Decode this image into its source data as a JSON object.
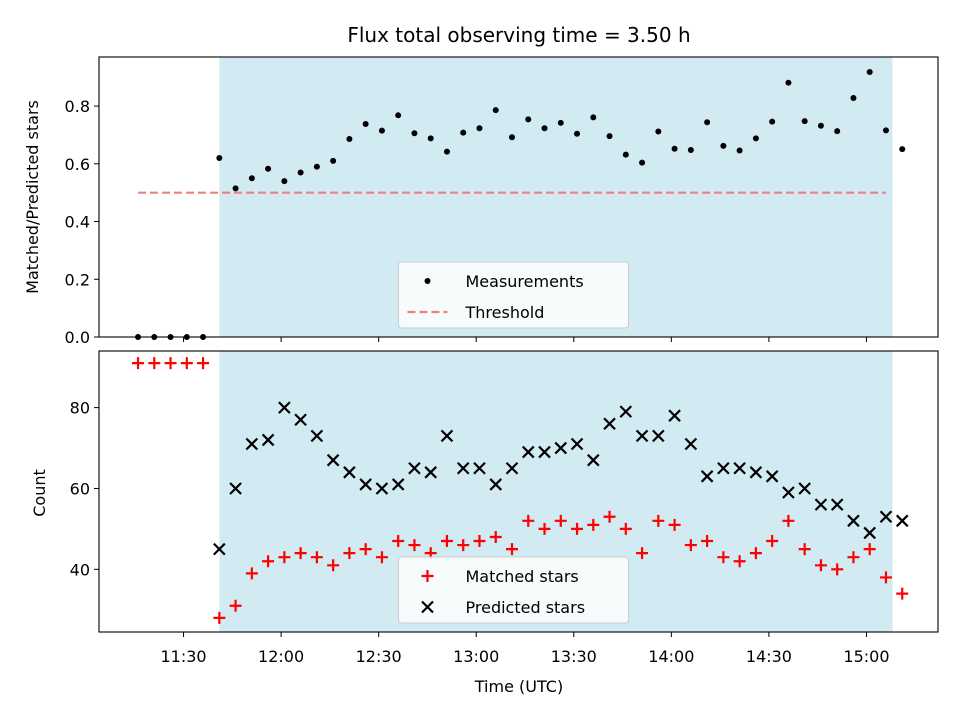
{
  "chart_data": {
    "type": "scatter",
    "title": "Flux total observing time = 3.50 h",
    "xlabel": "Time (UTC)",
    "x_tick_labels": [
      "11:30",
      "12:00",
      "12:30",
      "13:00",
      "13:30",
      "14:00",
      "14:30",
      "15:00"
    ],
    "x_tick_minutes": [
      690,
      720,
      750,
      780,
      810,
      840,
      870,
      900
    ],
    "x_range_minutes": [
      664,
      922
    ],
    "shaded_region_minutes": [
      701,
      908
    ],
    "shade_color": "#add8e6",
    "x_minutes": [
      676,
      681,
      686,
      691,
      696,
      701,
      706,
      711,
      716,
      721,
      726,
      731,
      736,
      741,
      746,
      751,
      756,
      761,
      766,
      771,
      776,
      781,
      786,
      791,
      796,
      801,
      806,
      811,
      816,
      821,
      826,
      831,
      836,
      841,
      846,
      851,
      856,
      861,
      866,
      871,
      876,
      881,
      886,
      891,
      896,
      901,
      906,
      911
    ],
    "top_panel": {
      "ylabel": "Matched/Predicted stars",
      "ylim": [
        0,
        0.97
      ],
      "yticks": [
        0.0,
        0.2,
        0.4,
        0.6,
        0.8
      ],
      "ytick_labels": [
        "0.0",
        "0.2",
        "0.4",
        "0.6",
        "0.8"
      ],
      "legend_location": "lower center",
      "series": [
        {
          "name": "Measurements",
          "color": "#000000",
          "marker": "dot",
          "values": [
            0.0,
            0.0,
            0.0,
            0.0,
            0.0,
            0.62,
            0.515,
            0.55,
            0.583,
            0.54,
            0.57,
            0.59,
            0.61,
            0.686,
            0.738,
            0.715,
            0.768,
            0.706,
            0.688,
            0.642,
            0.708,
            0.723,
            0.786,
            0.692,
            0.754,
            0.723,
            0.742,
            0.704,
            0.761,
            0.696,
            0.632,
            0.604,
            0.712,
            0.652,
            0.648,
            0.744,
            0.662,
            0.646,
            0.688,
            0.746,
            0.881,
            0.748,
            0.732,
            0.713,
            0.828,
            0.918,
            0.716,
            0.651
          ]
        },
        {
          "name": "Threshold",
          "color": "#f08080",
          "style": "dashed",
          "x_start_minutes": 676,
          "x_end_minutes": 906,
          "value": 0.5
        }
      ]
    },
    "bottom_panel": {
      "ylabel": "Count",
      "ylim": [
        24.5,
        94
      ],
      "yticks": [
        40,
        60,
        80
      ],
      "ytick_labels": [
        "40",
        "60",
        "80"
      ],
      "legend_location": "lower center",
      "series": [
        {
          "name": "Matched stars",
          "color": "#ff0000",
          "marker": "plus",
          "values": [
            91,
            91,
            91,
            91,
            91,
            28,
            31,
            39,
            42,
            43,
            44,
            43,
            41,
            44,
            45,
            43,
            47,
            46,
            44,
            47,
            46,
            47,
            48,
            45,
            52,
            50,
            52,
            50,
            51,
            53,
            50,
            44,
            52,
            51,
            46,
            47,
            43,
            42,
            44,
            47,
            52,
            45,
            41,
            40,
            43,
            45,
            38,
            34
          ]
        },
        {
          "name": "Predicted stars",
          "color": "#000000",
          "marker": "x",
          "x_start_index": 5,
          "values": [
            45,
            60,
            71,
            72,
            80,
            77,
            73,
            67,
            64,
            61,
            60,
            61,
            65,
            64,
            73,
            65,
            65,
            61,
            65,
            69,
            69,
            70,
            71,
            67,
            76,
            79,
            73,
            73,
            78,
            71,
            63,
            65,
            65,
            64,
            63,
            59,
            60,
            56,
            56,
            52,
            49,
            53,
            52
          ]
        }
      ]
    }
  }
}
